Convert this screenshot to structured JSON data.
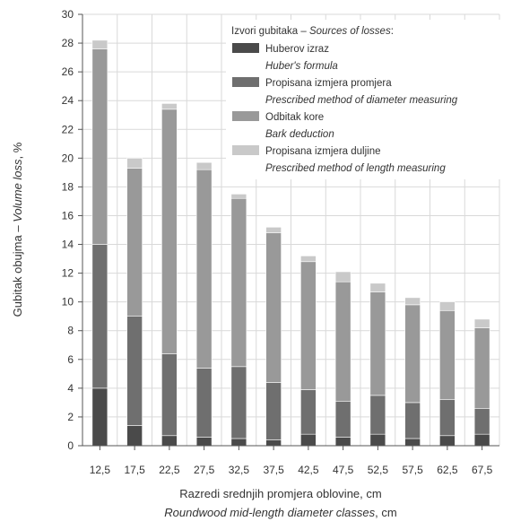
{
  "chart_data": {
    "type": "bar",
    "stacked": true,
    "categories": [
      "12,5",
      "17,5",
      "22,5",
      "27,5",
      "32,5",
      "37,5",
      "42,5",
      "47,5",
      "52,5",
      "57,5",
      "62,5",
      "67,5"
    ],
    "series": [
      {
        "name": "Huberov izraz",
        "name_en": "Huber's formula",
        "color": "#4a4a4a",
        "values": [
          4.0,
          1.4,
          0.7,
          0.6,
          0.5,
          0.4,
          0.8,
          0.6,
          0.8,
          0.5,
          0.7,
          0.8
        ]
      },
      {
        "name": "Propisana izmjera promjera",
        "name_en": "Prescribed method of diameter measuring",
        "color": "#6f6f6f",
        "values": [
          10.0,
          7.6,
          5.7,
          4.8,
          5.0,
          4.0,
          3.1,
          2.5,
          2.7,
          2.5,
          2.5,
          1.8
        ]
      },
      {
        "name": "Odbitak kore",
        "name_en": "Bark deduction",
        "color": "#999999",
        "values": [
          13.6,
          10.3,
          17.0,
          13.8,
          11.7,
          10.4,
          8.9,
          8.3,
          7.2,
          6.8,
          6.2,
          5.6
        ]
      },
      {
        "name": "Propisana izmjera duljine",
        "name_en": "Prescribed method of length measuring",
        "color": "#c9c9c9",
        "values": [
          0.6,
          0.7,
          0.4,
          0.5,
          0.3,
          0.4,
          0.4,
          0.7,
          0.6,
          0.5,
          0.6,
          0.6
        ]
      }
    ],
    "ylim": [
      0,
      30
    ],
    "yticks": [
      "0",
      "2",
      "4",
      "6",
      "8",
      "10",
      "12",
      "14",
      "16",
      "18",
      "20",
      "22",
      "24",
      "26",
      "28",
      "30"
    ],
    "ylabel": "Gubitak obujma",
    "ylabel_sep": " – ",
    "ylabel_en": "Volume loss",
    "ylabel_unit": ", %",
    "xlabel": "Razredi srednjih promjera oblovine, cm",
    "xlabel_en": "Roundwood mid-length diameter classes",
    "xlabel_en_unit": ", cm",
    "legend_title": "Izvori gubitaka – ",
    "legend_title_en": "Sources of losses",
    "legend_title_tail": ":",
    "legend_position": "top-right",
    "grid": true
  }
}
